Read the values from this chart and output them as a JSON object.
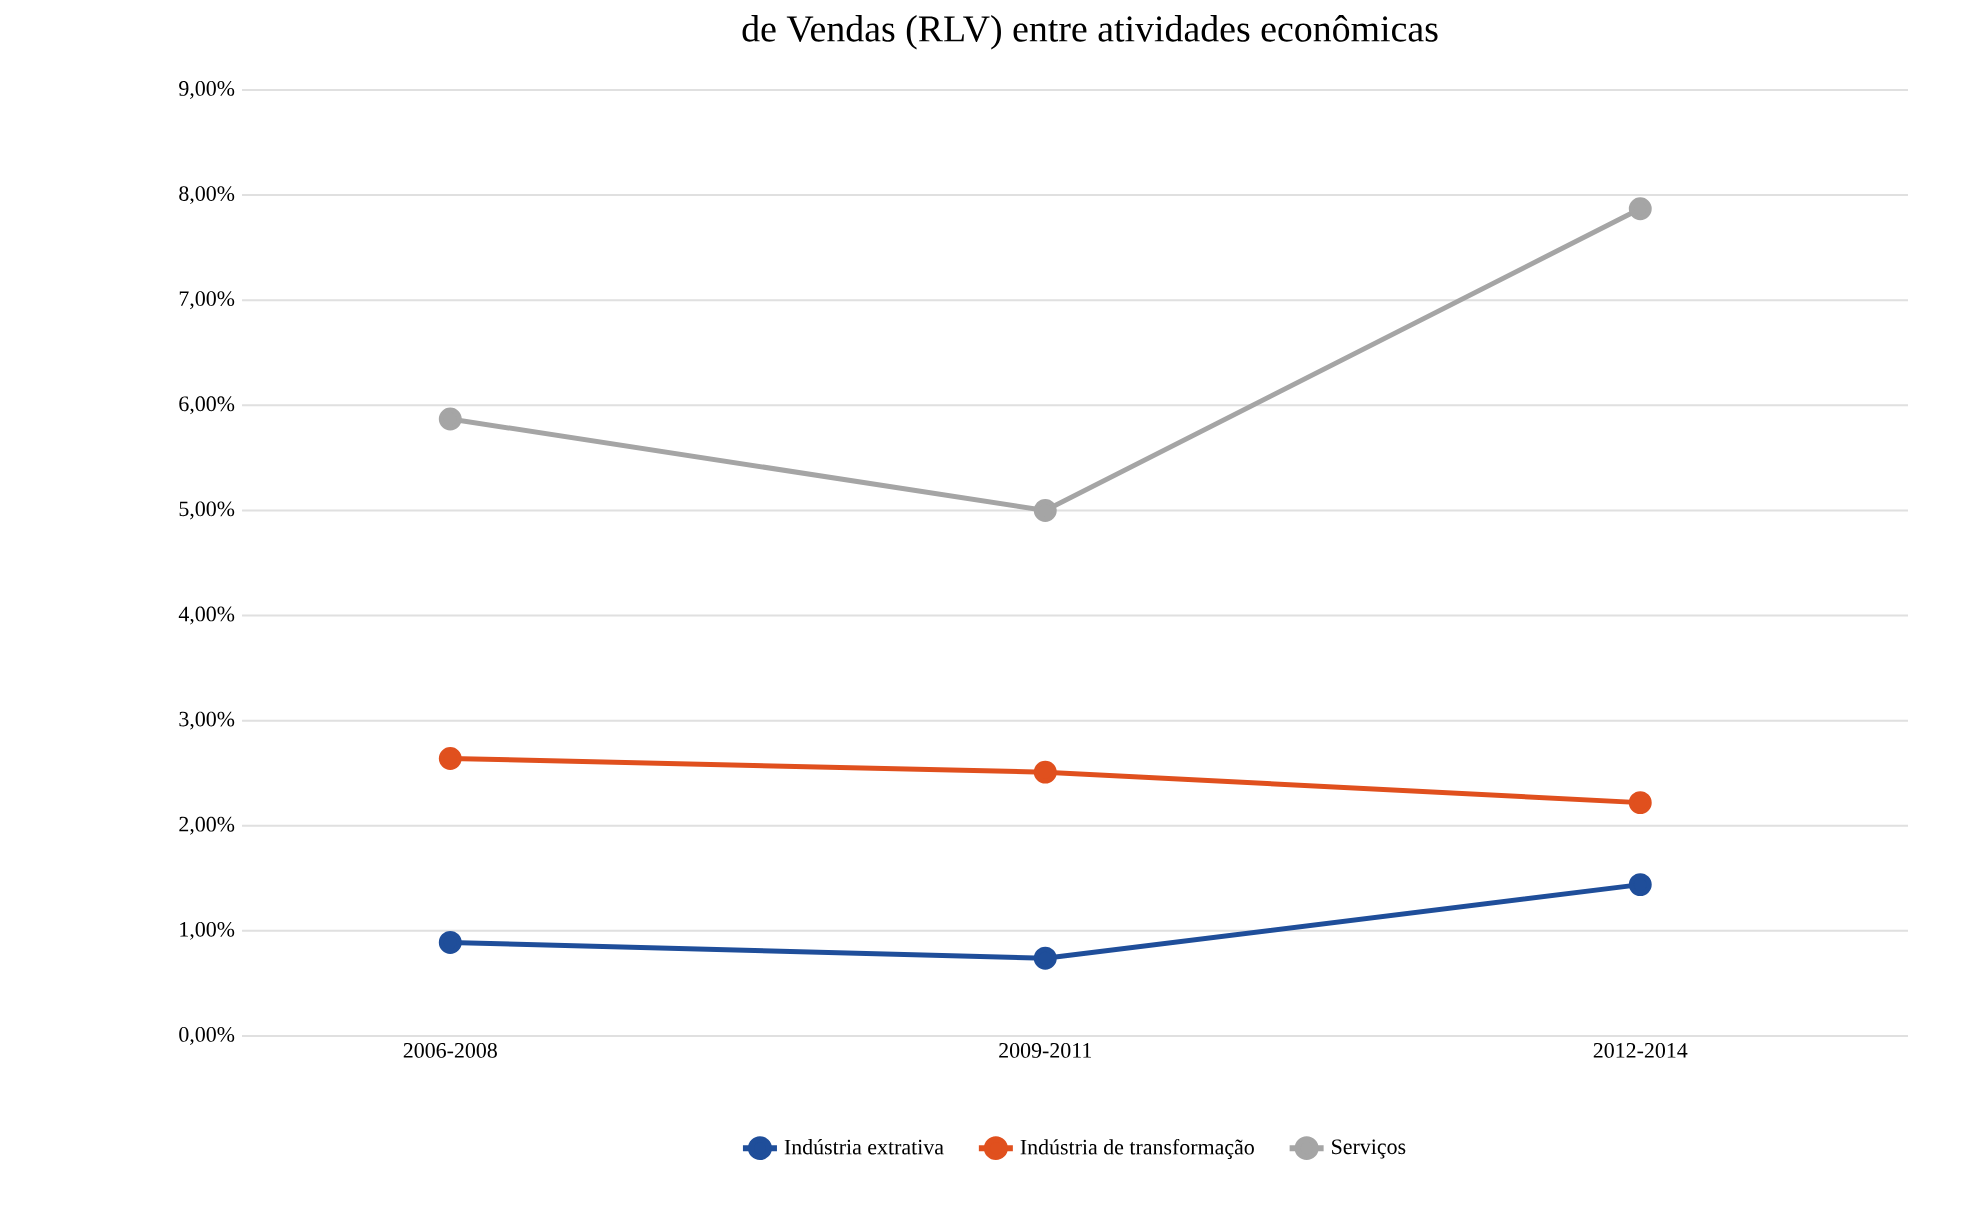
{
  "chart_data": {
    "type": "line",
    "title": "de Vendas (RLV) entre atividades econômicas",
    "categories": [
      "2006-2008",
      "2009-2011",
      "2012-2014"
    ],
    "series": [
      {
        "name": "Indústria extrativa",
        "color": "#1f4e9a",
        "values": [
          0.89,
          0.74,
          1.44
        ]
      },
      {
        "name": "Indústria de transformação",
        "color": "#e0501e",
        "values": [
          2.64,
          2.51,
          2.22
        ]
      },
      {
        "name": "Serviços",
        "color": "#a5a5a5",
        "values": [
          5.87,
          5.0,
          7.87
        ]
      }
    ],
    "ylim": [
      0,
      9
    ],
    "yticks": [
      {
        "value": 0,
        "label": "0,00%"
      },
      {
        "value": 1,
        "label": "1,00%"
      },
      {
        "value": 2,
        "label": "2,00%"
      },
      {
        "value": 3,
        "label": "3,00%"
      },
      {
        "value": 4,
        "label": "4,00%"
      },
      {
        "value": 5,
        "label": "5,00%"
      },
      {
        "value": 6,
        "label": "6,00%"
      },
      {
        "value": 7,
        "label": "7,00%"
      },
      {
        "value": 8,
        "label": "8,00%"
      },
      {
        "value": 9,
        "label": "9,00%"
      }
    ],
    "grid": "y",
    "legend": "bottom",
    "marker": "circle",
    "line_style": "solid"
  }
}
